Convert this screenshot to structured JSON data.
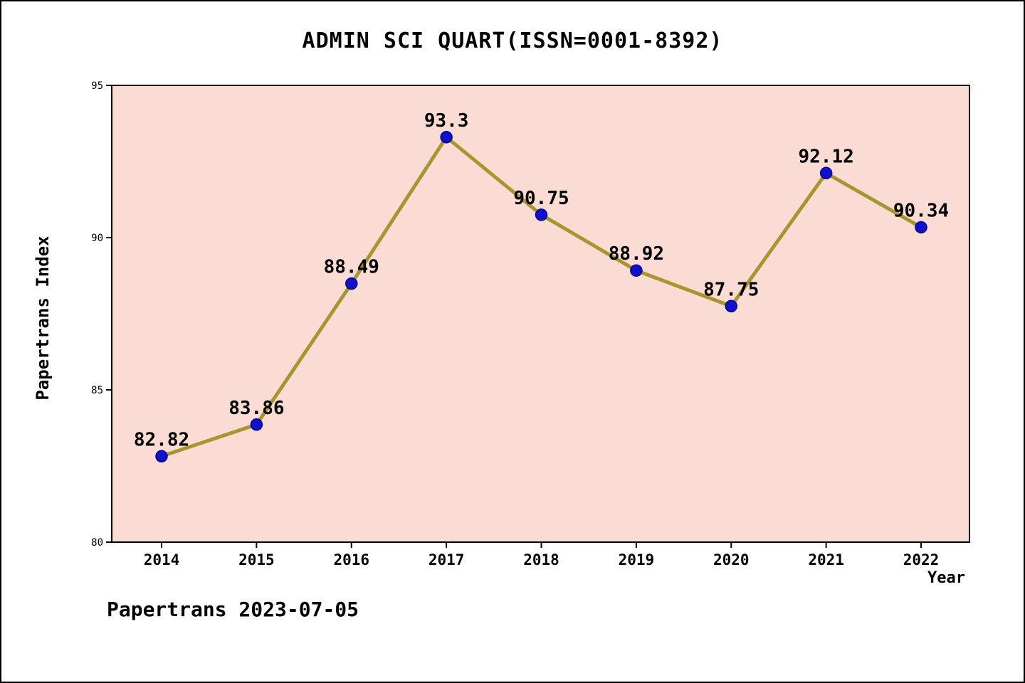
{
  "title": "ADMIN SCI QUART(ISSN=0001-8392)",
  "footer": "Papertrans 2023-07-05",
  "chart_data": {
    "type": "line",
    "title": "ADMIN SCI QUART(ISSN=0001-8392)",
    "xlabel": "Year",
    "ylabel": "Papertrans Index",
    "x": [
      2014,
      2015,
      2016,
      2017,
      2018,
      2019,
      2020,
      2021,
      2022
    ],
    "values": [
      82.82,
      83.86,
      88.49,
      93.3,
      90.75,
      88.92,
      87.75,
      92.12,
      90.34
    ],
    "ylim": [
      80,
      95
    ],
    "y_ticks": [
      80,
      85,
      90,
      95
    ],
    "grid": false,
    "legend": "none",
    "colors": {
      "plot_bg": "#fadcd4",
      "line": "#a8952f",
      "marker_fill": "#1111cc",
      "marker_edge": "#00008b",
      "text": "#000000",
      "axis": "#000000"
    }
  }
}
